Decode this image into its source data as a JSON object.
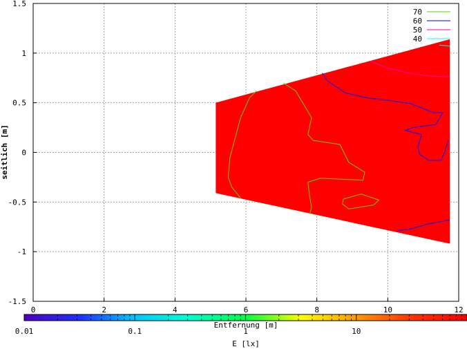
{
  "chart_data": {
    "type": "contour",
    "xlabel": "Entfernung [m]",
    "ylabel": "seitlich [m]",
    "xlim": [
      0,
      12
    ],
    "ylim": [
      -1.5,
      1.5
    ],
    "x_ticks": [
      "0",
      "2",
      "4",
      "6",
      "8",
      "10",
      "12"
    ],
    "y_ticks": [
      "-1.5",
      "-1",
      "-0.5",
      "0",
      "0.5",
      "1",
      "1.5"
    ],
    "grid": true,
    "legend_position": "top-right",
    "filled_region": {
      "color": "#ff0000",
      "polygon": [
        [
          5.15,
          0.5
        ],
        [
          11.75,
          1.14
        ],
        [
          11.75,
          -0.92
        ],
        [
          5.15,
          -0.41
        ]
      ]
    },
    "series": [
      {
        "name": "70",
        "color": "#66cc00",
        "paths": [
          [
            [
              6.3,
              0.62
            ],
            [
              6.1,
              0.55
            ],
            [
              5.85,
              0.35
            ],
            [
              5.7,
              0.15
            ],
            [
              5.55,
              -0.05
            ],
            [
              5.5,
              -0.25
            ],
            [
              5.6,
              -0.35
            ],
            [
              5.85,
              -0.46
            ]
          ],
          [
            [
              7.05,
              0.7
            ],
            [
              7.4,
              0.62
            ],
            [
              7.85,
              0.35
            ],
            [
              7.75,
              0.18
            ],
            [
              7.9,
              0.12
            ],
            [
              8.65,
              0.08
            ],
            [
              8.9,
              -0.1
            ],
            [
              9.35,
              -0.2
            ],
            [
              9.3,
              -0.28
            ],
            [
              8.1,
              -0.26
            ],
            [
              7.75,
              -0.3
            ],
            [
              7.8,
              -0.45
            ],
            [
              7.85,
              -0.55
            ],
            [
              7.8,
              -0.62
            ]
          ],
          [
            [
              8.75,
              -0.47
            ],
            [
              9.25,
              -0.42
            ],
            [
              9.75,
              -0.48
            ],
            [
              9.6,
              -0.53
            ],
            [
              9.25,
              -0.55
            ],
            [
              8.9,
              -0.57
            ],
            [
              8.72,
              -0.52
            ],
            [
              8.75,
              -0.47
            ]
          ]
        ]
      },
      {
        "name": "60",
        "color": "#0000ff",
        "paths": [
          [
            [
              8.15,
              0.8
            ],
            [
              8.3,
              0.72
            ],
            [
              8.8,
              0.6
            ],
            [
              9.4,
              0.55
            ],
            [
              10.1,
              0.52
            ],
            [
              10.65,
              0.49
            ],
            [
              11.3,
              0.4
            ],
            [
              11.55,
              0.4
            ],
            [
              11.35,
              0.28
            ],
            [
              10.7,
              0.25
            ],
            [
              10.5,
              0.22
            ],
            [
              10.95,
              0.18
            ],
            [
              10.85,
              0.05
            ],
            [
              10.9,
              -0.02
            ],
            [
              11.15,
              -0.08
            ],
            [
              11.5,
              -0.08
            ],
            [
              11.6,
              0.0
            ],
            [
              11.7,
              0.12
            ]
          ],
          [
            [
              10.25,
              -0.79
            ],
            [
              10.65,
              -0.77
            ],
            [
              11.15,
              -0.72
            ],
            [
              11.75,
              -0.68
            ]
          ]
        ]
      },
      {
        "name": "50",
        "color": "#ff00aa",
        "paths": [
          [
            [
              9.5,
              0.92
            ],
            [
              10.0,
              0.85
            ],
            [
              10.6,
              0.8
            ],
            [
              11.15,
              0.77
            ],
            [
              11.75,
              0.76
            ]
          ]
        ]
      },
      {
        "name": "40",
        "color": "#00ffff",
        "paths": [
          [
            [
              11.45,
              1.08
            ],
            [
              11.75,
              1.07
            ]
          ]
        ]
      }
    ],
    "colorbar": {
      "label": "E [lx]",
      "scale": "log",
      "range": [
        0.01,
        100
      ],
      "ticks": [
        "0.01",
        "0.1",
        "1",
        "10"
      ],
      "colors": [
        "#5000c0",
        "#2030ff",
        "#00c8ff",
        "#00ffcc",
        "#00ff40",
        "#ffff00",
        "#ff9900",
        "#ff3300",
        "#ff0000"
      ]
    }
  }
}
